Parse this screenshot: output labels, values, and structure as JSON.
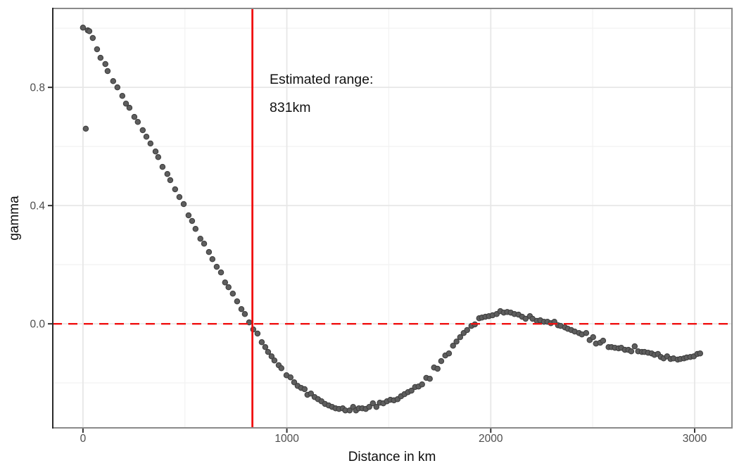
{
  "chart_data": {
    "type": "scatter",
    "title": "",
    "xlabel": "Distance in km",
    "ylabel": "gamma",
    "xlim": [
      -148,
      3183
    ],
    "ylim": [
      -0.352,
      1.067
    ],
    "x_major_ticks": [
      0,
      1000,
      2000,
      3000
    ],
    "x_tick_labels": [
      "0",
      "1000",
      "2000",
      "3000"
    ],
    "x_minor_ticks": [
      500,
      1500,
      2500
    ],
    "y_major_ticks": [
      0,
      0.4,
      0.8
    ],
    "y_tick_labels": [
      "0.0",
      "0.4",
      "0.8"
    ],
    "y_minor_ticks": [
      -0.2,
      0.2,
      0.6,
      1.0
    ],
    "grid": true,
    "legend": "none",
    "hline": {
      "y": 0,
      "style": "dashed",
      "color": "#f01010"
    },
    "vline": {
      "x": 831,
      "style": "solid",
      "color": "#f01010"
    },
    "estimated_range_km": 831,
    "annotation": {
      "lines": [
        "Estimated range:",
        "831km"
      ],
      "x_km": 915,
      "y_gamma": 0.83
    },
    "points": [
      [
        0,
        1.002
      ],
      [
        14,
        0.66
      ],
      [
        24,
        0.993
      ],
      [
        31,
        0.99
      ],
      [
        48,
        0.967
      ],
      [
        69,
        0.929
      ],
      [
        86,
        0.9
      ],
      [
        110,
        0.879
      ],
      [
        121,
        0.855
      ],
      [
        148,
        0.821
      ],
      [
        169,
        0.8
      ],
      [
        193,
        0.771
      ],
      [
        211,
        0.745
      ],
      [
        228,
        0.731
      ],
      [
        252,
        0.7
      ],
      [
        269,
        0.683
      ],
      [
        293,
        0.655
      ],
      [
        311,
        0.633
      ],
      [
        331,
        0.61
      ],
      [
        356,
        0.583
      ],
      [
        369,
        0.564
      ],
      [
        390,
        0.531
      ],
      [
        414,
        0.507
      ],
      [
        428,
        0.486
      ],
      [
        452,
        0.455
      ],
      [
        473,
        0.429
      ],
      [
        494,
        0.405
      ],
      [
        518,
        0.367
      ],
      [
        535,
        0.348
      ],
      [
        552,
        0.321
      ],
      [
        576,
        0.288
      ],
      [
        594,
        0.271
      ],
      [
        618,
        0.243
      ],
      [
        635,
        0.219
      ],
      [
        656,
        0.193
      ],
      [
        677,
        0.174
      ],
      [
        697,
        0.14
      ],
      [
        714,
        0.124
      ],
      [
        735,
        0.102
      ],
      [
        756,
        0.076
      ],
      [
        777,
        0.05
      ],
      [
        794,
        0.033
      ],
      [
        815,
        0.005
      ],
      [
        835,
        -0.019
      ],
      [
        856,
        -0.033
      ],
      [
        877,
        -0.062
      ],
      [
        894,
        -0.079
      ],
      [
        908,
        -0.095
      ],
      [
        925,
        -0.11
      ],
      [
        939,
        -0.124
      ],
      [
        960,
        -0.14
      ],
      [
        973,
        -0.15
      ],
      [
        998,
        -0.174
      ],
      [
        1018,
        -0.181
      ],
      [
        1036,
        -0.198
      ],
      [
        1053,
        -0.21
      ],
      [
        1070,
        -0.217
      ],
      [
        1087,
        -0.221
      ],
      [
        1101,
        -0.24
      ],
      [
        1118,
        -0.236
      ],
      [
        1136,
        -0.248
      ],
      [
        1153,
        -0.255
      ],
      [
        1170,
        -0.262
      ],
      [
        1187,
        -0.271
      ],
      [
        1205,
        -0.276
      ],
      [
        1222,
        -0.281
      ],
      [
        1239,
        -0.286
      ],
      [
        1256,
        -0.288
      ],
      [
        1274,
        -0.286
      ],
      [
        1287,
        -0.293
      ],
      [
        1308,
        -0.293
      ],
      [
        1325,
        -0.281
      ],
      [
        1339,
        -0.293
      ],
      [
        1353,
        -0.286
      ],
      [
        1370,
        -0.286
      ],
      [
        1387,
        -0.288
      ],
      [
        1404,
        -0.281
      ],
      [
        1422,
        -0.269
      ],
      [
        1439,
        -0.281
      ],
      [
        1456,
        -0.267
      ],
      [
        1473,
        -0.269
      ],
      [
        1491,
        -0.262
      ],
      [
        1508,
        -0.257
      ],
      [
        1525,
        -0.259
      ],
      [
        1543,
        -0.255
      ],
      [
        1560,
        -0.245
      ],
      [
        1577,
        -0.238
      ],
      [
        1594,
        -0.231
      ],
      [
        1611,
        -0.226
      ],
      [
        1629,
        -0.214
      ],
      [
        1646,
        -0.212
      ],
      [
        1663,
        -0.205
      ],
      [
        1684,
        -0.183
      ],
      [
        1701,
        -0.186
      ],
      [
        1722,
        -0.148
      ],
      [
        1739,
        -0.152
      ],
      [
        1757,
        -0.126
      ],
      [
        1777,
        -0.107
      ],
      [
        1795,
        -0.1
      ],
      [
        1815,
        -0.074
      ],
      [
        1832,
        -0.06
      ],
      [
        1850,
        -0.045
      ],
      [
        1867,
        -0.031
      ],
      [
        1884,
        -0.021
      ],
      [
        1905,
        -0.007
      ],
      [
        1922,
        -0.002
      ],
      [
        1943,
        0.019
      ],
      [
        1957,
        0.021
      ],
      [
        1974,
        0.024
      ],
      [
        1991,
        0.026
      ],
      [
        2009,
        0.029
      ],
      [
        2029,
        0.033
      ],
      [
        2047,
        0.043
      ],
      [
        2064,
        0.038
      ],
      [
        2081,
        0.04
      ],
      [
        2098,
        0.038
      ],
      [
        2116,
        0.033
      ],
      [
        2136,
        0.031
      ],
      [
        2154,
        0.024
      ],
      [
        2171,
        0.017
      ],
      [
        2192,
        0.026
      ],
      [
        2205,
        0.017
      ],
      [
        2226,
        0.01
      ],
      [
        2243,
        0.012
      ],
      [
        2261,
        0.007
      ],
      [
        2278,
        0.007
      ],
      [
        2295,
        0.002
      ],
      [
        2312,
        0.007
      ],
      [
        2330,
        -0.005
      ],
      [
        2343,
        -0.007
      ],
      [
        2364,
        -0.012
      ],
      [
        2378,
        -0.017
      ],
      [
        2395,
        -0.021
      ],
      [
        2412,
        -0.026
      ],
      [
        2433,
        -0.031
      ],
      [
        2447,
        -0.036
      ],
      [
        2468,
        -0.031
      ],
      [
        2485,
        -0.055
      ],
      [
        2502,
        -0.045
      ],
      [
        2516,
        -0.067
      ],
      [
        2537,
        -0.064
      ],
      [
        2551,
        -0.057
      ],
      [
        2578,
        -0.079
      ],
      [
        2592,
        -0.079
      ],
      [
        2609,
        -0.081
      ],
      [
        2627,
        -0.083
      ],
      [
        2640,
        -0.081
      ],
      [
        2658,
        -0.088
      ],
      [
        2675,
        -0.088
      ],
      [
        2689,
        -0.093
      ],
      [
        2706,
        -0.076
      ],
      [
        2723,
        -0.093
      ],
      [
        2741,
        -0.095
      ],
      [
        2754,
        -0.095
      ],
      [
        2772,
        -0.098
      ],
      [
        2789,
        -0.1
      ],
      [
        2803,
        -0.105
      ],
      [
        2820,
        -0.102
      ],
      [
        2834,
        -0.112
      ],
      [
        2848,
        -0.117
      ],
      [
        2865,
        -0.11
      ],
      [
        2882,
        -0.119
      ],
      [
        2896,
        -0.117
      ],
      [
        2917,
        -0.121
      ],
      [
        2930,
        -0.119
      ],
      [
        2948,
        -0.117
      ],
      [
        2961,
        -0.114
      ],
      [
        2979,
        -0.112
      ],
      [
        2996,
        -0.11
      ],
      [
        3013,
        -0.102
      ],
      [
        3027,
        -0.1
      ]
    ],
    "point_style": {
      "fill": "#5e5e5e",
      "stroke": "#3f3f3f",
      "radius": 3.7
    },
    "colors": {
      "background": "#ffffff",
      "panel_border": "#8a8a8a",
      "left_axis_line": "#2a2a2a",
      "grid_major": "#e7e7e7",
      "grid_minor": "#f2f2f2",
      "tick_mark": "#333333",
      "tick_label": "#4d4d4d",
      "axis_title": "#0f0f0f",
      "annotation_text": "#111111",
      "reference_red": "#f01010"
    }
  }
}
